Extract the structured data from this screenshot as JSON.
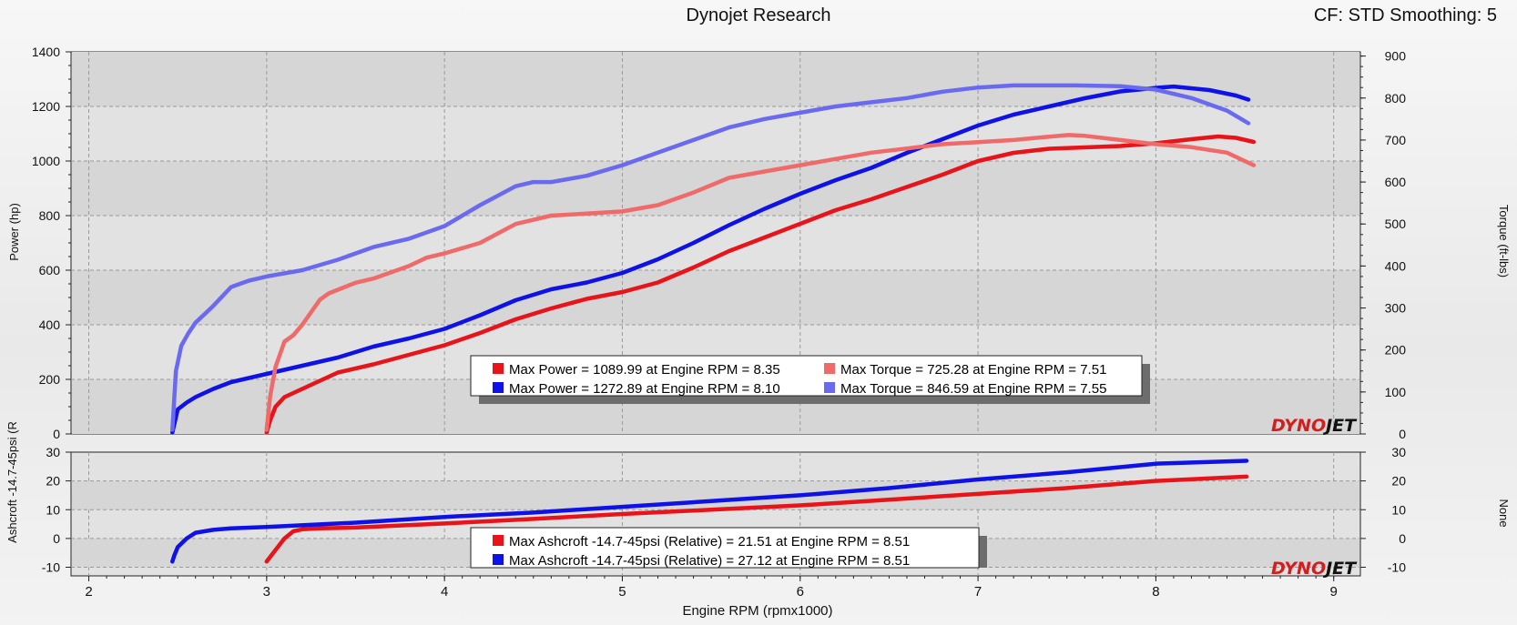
{
  "header": {
    "title": "Dynojet Research",
    "subtitle": "CF: STD Smoothing: 5"
  },
  "colors": {
    "red": "#e8141a",
    "blue": "#0e12e6",
    "light_red": "#f06a6a",
    "light_blue": "#6a6af0"
  },
  "branding": {
    "logo": "DYNOJET"
  },
  "chart_data": [
    {
      "type": "line",
      "xlabel": "Engine RPM (rpmx1000)",
      "ylabel": "Power (hp)",
      "y2label": "Torque (ft-lbs)",
      "xlim": [
        1.9,
        9.15
      ],
      "ylim": [
        0,
        1400
      ],
      "y2lim": [
        0,
        910
      ],
      "x_ticks": [
        "2",
        "3",
        "4",
        "5",
        "6",
        "7",
        "8",
        "9"
      ],
      "y_ticks": [
        "0",
        "200",
        "400",
        "600",
        "800",
        "1000",
        "1200",
        "1400"
      ],
      "y2_ticks": [
        "0",
        "100",
        "200",
        "300",
        "400",
        "500",
        "600",
        "700",
        "800",
        "900"
      ],
      "grid": true,
      "legend_position": "bottom-center",
      "legend": [
        [
          "Max Power = 1089.99 at Engine RPM = 8.35",
          "Max Torque = 725.28 at Engine RPM = 7.51"
        ],
        [
          "Max Power = 1272.89 at Engine RPM = 8.10",
          "Max Torque = 846.59 at Engine RPM = 7.55"
        ]
      ],
      "series": [
        {
          "name": "Max Power = 1089.99 at Engine RPM = 8.35",
          "axis": "left",
          "color": "#e8141a",
          "x": [
            3.0,
            3.02,
            3.05,
            3.1,
            3.2,
            3.3,
            3.4,
            3.6,
            3.8,
            4.0,
            4.2,
            4.4,
            4.6,
            4.8,
            5.0,
            5.2,
            5.4,
            5.6,
            5.8,
            6.0,
            6.2,
            6.4,
            6.6,
            6.8,
            7.0,
            7.2,
            7.4,
            7.6,
            7.8,
            8.0,
            8.2,
            8.35,
            8.45,
            8.55
          ],
          "y": [
            5,
            50,
            100,
            135,
            165,
            195,
            225,
            255,
            290,
            325,
            370,
            420,
            460,
            495,
            520,
            555,
            610,
            670,
            720,
            770,
            820,
            860,
            905,
            950,
            1000,
            1030,
            1045,
            1050,
            1055,
            1065,
            1080,
            1090,
            1085,
            1070
          ]
        },
        {
          "name": "Max Power = 1272.89 at Engine RPM = 8.10",
          "axis": "left",
          "color": "#0e12e6",
          "x": [
            2.47,
            2.5,
            2.55,
            2.6,
            2.7,
            2.8,
            3.0,
            3.2,
            3.4,
            3.6,
            3.8,
            4.0,
            4.2,
            4.4,
            4.6,
            4.8,
            5.0,
            5.2,
            5.4,
            5.6,
            5.8,
            6.0,
            6.2,
            6.4,
            6.6,
            6.8,
            7.0,
            7.2,
            7.4,
            7.6,
            7.8,
            8.0,
            8.1,
            8.3,
            8.45,
            8.52
          ],
          "y": [
            5,
            90,
            115,
            135,
            165,
            190,
            220,
            250,
            280,
            320,
            350,
            385,
            435,
            490,
            530,
            555,
            590,
            640,
            700,
            765,
            825,
            880,
            930,
            975,
            1030,
            1080,
            1130,
            1170,
            1200,
            1230,
            1255,
            1268,
            1273,
            1260,
            1240,
            1225
          ]
        },
        {
          "name": "Max Torque = 725.28 at Engine RPM = 7.51",
          "axis": "right",
          "color": "#f06a6a",
          "x": [
            3.0,
            3.02,
            3.05,
            3.1,
            3.15,
            3.2,
            3.3,
            3.35,
            3.5,
            3.6,
            3.8,
            3.9,
            4.0,
            4.2,
            4.4,
            4.6,
            4.8,
            5.0,
            5.2,
            5.4,
            5.6,
            5.8,
            6.0,
            6.2,
            6.4,
            6.6,
            6.8,
            7.0,
            7.2,
            7.4,
            7.51,
            7.6,
            7.8,
            8.0,
            8.2,
            8.4,
            8.55
          ],
          "y": [
            10,
            90,
            160,
            220,
            235,
            260,
            320,
            335,
            360,
            370,
            400,
            420,
            430,
            455,
            500,
            520,
            525,
            530,
            545,
            575,
            610,
            625,
            640,
            655,
            670,
            680,
            690,
            695,
            700,
            708,
            712,
            710,
            700,
            690,
            683,
            670,
            640
          ]
        },
        {
          "name": "Max Torque = 846.59 at Engine RPM = 7.55",
          "axis": "right",
          "color": "#6a6af0",
          "x": [
            2.47,
            2.49,
            2.52,
            2.56,
            2.6,
            2.65,
            2.7,
            2.8,
            2.9,
            3.0,
            3.2,
            3.4,
            3.6,
            3.8,
            4.0,
            4.2,
            4.4,
            4.5,
            4.6,
            4.8,
            5.0,
            5.2,
            5.4,
            5.6,
            5.8,
            6.0,
            6.2,
            6.4,
            6.6,
            6.8,
            7.0,
            7.2,
            7.4,
            7.55,
            7.8,
            8.0,
            8.2,
            8.4,
            8.52
          ],
          "y": [
            10,
            150,
            210,
            240,
            265,
            285,
            305,
            350,
            365,
            375,
            390,
            415,
            445,
            465,
            495,
            545,
            590,
            600,
            600,
            615,
            640,
            670,
            700,
            730,
            750,
            765,
            780,
            790,
            800,
            815,
            825,
            830,
            830,
            830,
            828,
            820,
            800,
            770,
            740
          ]
        }
      ]
    },
    {
      "type": "line",
      "ylabel": "Ashcroft -14.7-45psi (R",
      "y2label": "None",
      "xlim": [
        1.9,
        9.15
      ],
      "ylim": [
        -13,
        30
      ],
      "y_ticks": [
        "-10",
        "0",
        "10",
        "20",
        "30"
      ],
      "y2_ticks": [
        "-10",
        "0",
        "10",
        "20",
        "30"
      ],
      "grid": true,
      "legend_position": "bottom-center",
      "legend": [
        "Max Ashcroft -14.7-45psi (Relative) = 21.51 at Engine RPM = 8.51",
        "Max Ashcroft -14.7-45psi (Relative) = 27.12 at Engine RPM = 8.51"
      ],
      "series": [
        {
          "name": "Max Ashcroft -14.7-45psi (Relative) = 21.51 at Engine RPM = 8.51",
          "color": "#e8141a",
          "x": [
            3.0,
            3.05,
            3.1,
            3.15,
            3.2,
            3.3,
            3.5,
            4.0,
            4.5,
            5.0,
            5.5,
            6.0,
            6.5,
            7.0,
            7.5,
            8.0,
            8.51
          ],
          "y": [
            -8,
            -4,
            0,
            2.5,
            3.2,
            3.5,
            3.8,
            5.2,
            6.8,
            8.5,
            10,
            11.5,
            13.5,
            15.5,
            17.5,
            20,
            21.5
          ]
        },
        {
          "name": "Max Ashcroft -14.7-45psi (Relative) = 27.12 at Engine RPM = 8.51",
          "color": "#0e12e6",
          "x": [
            2.47,
            2.48,
            2.5,
            2.55,
            2.6,
            2.7,
            2.8,
            3.0,
            3.5,
            4.0,
            4.5,
            5.0,
            5.5,
            6.0,
            6.5,
            7.0,
            7.5,
            8.0,
            8.51
          ],
          "y": [
            -8,
            -6,
            -3,
            0,
            2,
            3,
            3.5,
            4,
            5.5,
            7.5,
            9,
            11,
            13,
            15,
            17.5,
            20.5,
            23,
            26,
            27
          ]
        }
      ]
    }
  ]
}
